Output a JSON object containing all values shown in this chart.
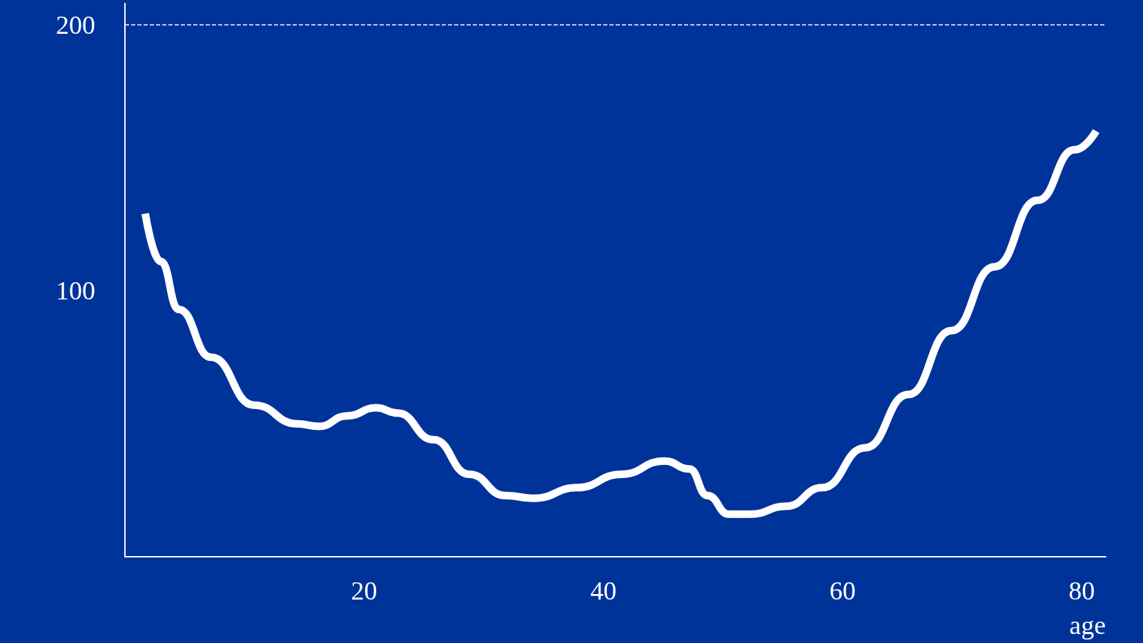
{
  "chart_data": {
    "type": "line",
    "xlabel": "age",
    "xlim": [
      0,
      82
    ],
    "xticks": [
      20,
      40,
      60,
      80
    ],
    "ylim": [
      0,
      208
    ],
    "yticks": [
      100,
      200
    ],
    "marker": "none",
    "line_style": "solid",
    "series": [
      {
        "color": "#ffffff",
        "x": [
          1.7,
          3.0,
          4.5,
          7.2,
          10.8,
          14.4,
          16.2,
          18.6,
          21.0,
          22.8,
          25.8,
          28.8,
          31.8,
          34.2,
          37.8,
          41.5,
          45.1,
          47.2,
          48.7,
          50.5,
          52.3,
          55.3,
          58.3,
          61.9,
          65.5,
          69.1,
          72.7,
          76.3,
          79.4,
          81.2
        ],
        "values": [
          129,
          111,
          93,
          75,
          57,
          50,
          49,
          53,
          56,
          54,
          44,
          31,
          23,
          22,
          26,
          31,
          36,
          33,
          23,
          16,
          16,
          19,
          26,
          41,
          61,
          85,
          109,
          134,
          153,
          160
        ]
      }
    ],
    "ref_lines": [
      {
        "axis": "y",
        "value": 200,
        "color": "#ffffff",
        "line_style": "dashed"
      }
    ]
  }
}
